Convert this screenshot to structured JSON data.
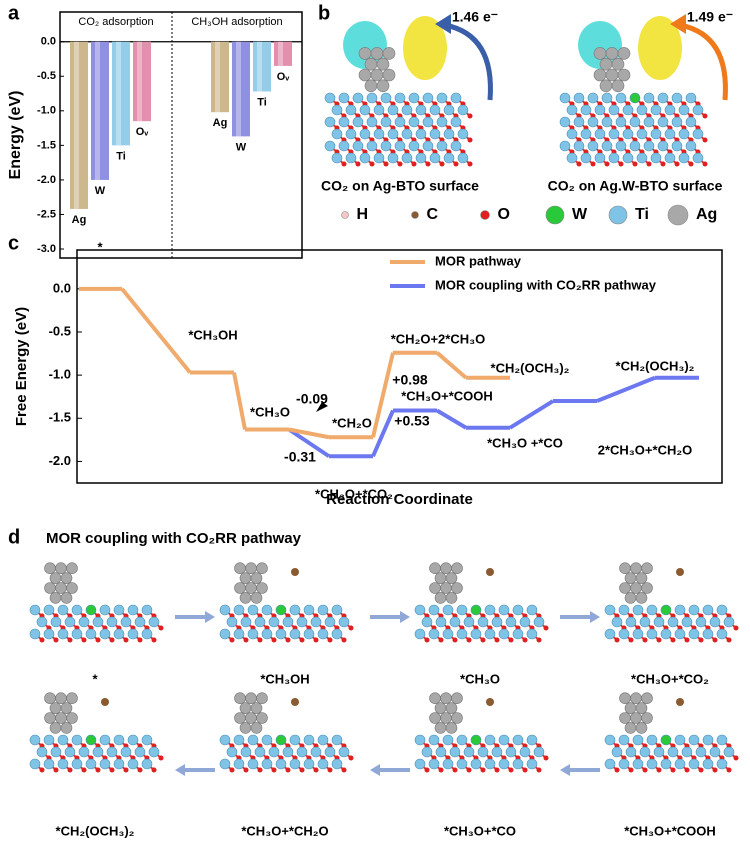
{
  "chart_data": [
    {
      "type": "bar",
      "ylabel": "Energy (eV)",
      "categories": [
        "CO₂ adsorption",
        "CH₃OH adsorption"
      ],
      "series": [
        {
          "name": "Ag",
          "color": "#cdb88e",
          "values": [
            -2.42,
            -1.02
          ]
        },
        {
          "name": "W",
          "color": "#8f90e2",
          "values": [
            -2.0,
            -1.37
          ]
        },
        {
          "name": "Ti",
          "color": "#93cdea",
          "values": [
            -1.5,
            -0.72
          ]
        },
        {
          "name": "Oᵥ",
          "color": "#e290ad",
          "values": [
            -1.15,
            -0.35
          ]
        }
      ],
      "ylim": [
        -3.13,
        0.43
      ],
      "yticks": [
        {
          "value": 0,
          "label": "0.0"
        },
        -0.5,
        {
          "value": -1,
          "label": "-1.0"
        },
        -1.5,
        {
          "value": -2,
          "label": "-2.0"
        },
        -2.5,
        {
          "value": -3,
          "label": "-3.0"
        }
      ]
    },
    {
      "type": "line",
      "xlabel": "Reaction Coordinate",
      "ylabel": "Free Energy (eV)",
      "categories": [
        null,
        null,
        null,
        null,
        null,
        null,
        null,
        null
      ],
      "series": [
        {
          "name": "MOR pathway",
          "color": "#f0aa6c",
          "values": [
            0,
            -0.97,
            -1.63,
            -1.72,
            -0.74,
            -1.03,
            null,
            null
          ],
          "point_labels": [
            "*",
            "*CH₃OH",
            "*CH₃O",
            "*CH₂O",
            "*CH₂O+2*CH₃O",
            "*CH₂(OCH₃)₂",
            null,
            null
          ]
        },
        {
          "name": "MOR coupling with CO₂RR pathway",
          "color": "#6b78f0",
          "values": [
            null,
            null,
            -1.63,
            -1.94,
            -1.41,
            -1.61,
            -1.3,
            -1.03
          ],
          "point_labels": [
            null,
            null,
            null,
            "*CH₃O+*CO₂",
            "*CH₃O+*COOH",
            "*CH₃O +*CO",
            "2*CH₃O+*CH₂O",
            "*CH₂(OCH₃)₂"
          ]
        }
      ],
      "annotations": [
        "-0.09",
        "+0.98",
        "-0.31",
        "+0.53"
      ],
      "ylim": [
        -2.25,
        0.45
      ],
      "yticks": [
        {
          "value": 0,
          "label": "0.0"
        },
        -0.5,
        {
          "value": -1,
          "label": "-1.0"
        },
        -1.5,
        {
          "value": -2,
          "label": "-2.0"
        }
      ],
      "legend": "upper right"
    }
  ],
  "panel_labels": [
    "a",
    "b",
    "c",
    "d"
  ],
  "panel_b": {
    "charge_labels": [
      "1.46 e⁻",
      "1.49 e⁻"
    ],
    "captions": [
      "CO₂ on Ag-BTO surface",
      "CO₂ on Ag.W-BTO surface"
    ],
    "legend": [
      "H",
      "C",
      "O",
      "W",
      "Ti",
      "Ag"
    ]
  },
  "panel_d": {
    "title": "MOR coupling with CO₂RR pathway",
    "steps": [
      "*",
      "*CH₃OH",
      "*CH₃O",
      "*CH₃O+*CO₂",
      "*CH₂(OCH₃)₂",
      "*CH₃O+*CH₂O",
      "*CH₃O+*CO",
      "*CH₃O+*COOH"
    ]
  }
}
